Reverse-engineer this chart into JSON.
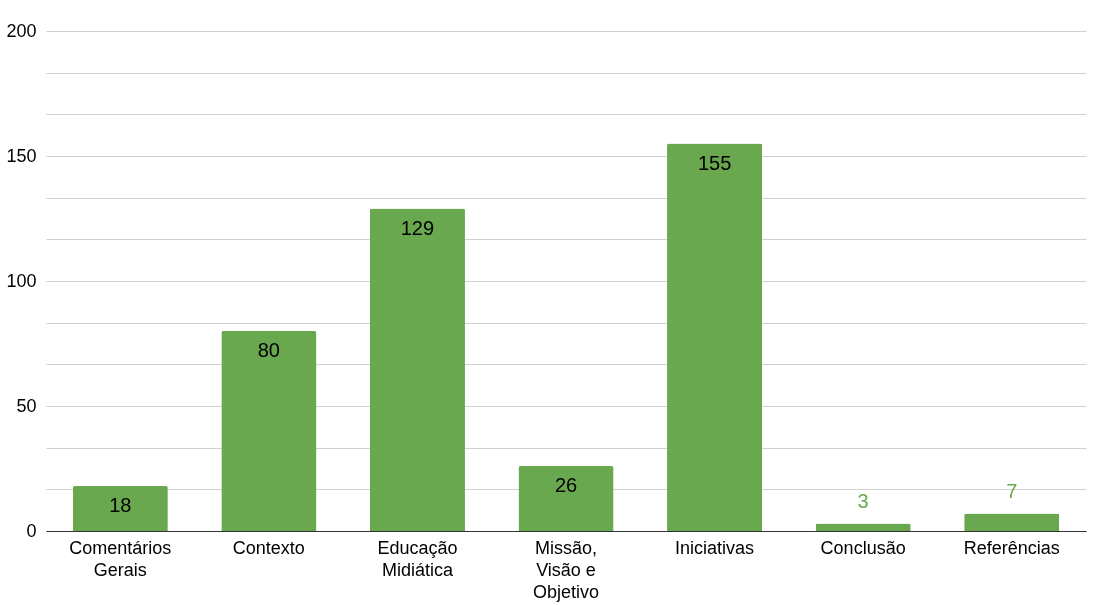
{
  "chart_data": {
    "type": "bar",
    "categories": [
      "Comentários Gerais",
      "Contexto",
      "Educação Midiática",
      "Missão, Visão e Objetivo",
      "Iniciativas",
      "Conclusão",
      "Referências"
    ],
    "values": [
      18,
      80,
      129,
      26,
      155,
      3,
      7
    ],
    "color": "#6aa84f",
    "ylim": [
      0,
      200
    ],
    "yticks": [
      0,
      {
        "value": 16.67,
        "label": null
      },
      {
        "value": 33.33,
        "label": null
      },
      50,
      {
        "value": 66.67,
        "label": null
      },
      {
        "value": 83.33,
        "label": null
      },
      100,
      {
        "value": 116.67,
        "label": null
      },
      {
        "value": 133.33,
        "label": null
      },
      150,
      {
        "value": 166.67,
        "label": null
      },
      {
        "value": 183.33,
        "label": null
      },
      200
    ],
    "grid": true,
    "data_labels": true
  }
}
